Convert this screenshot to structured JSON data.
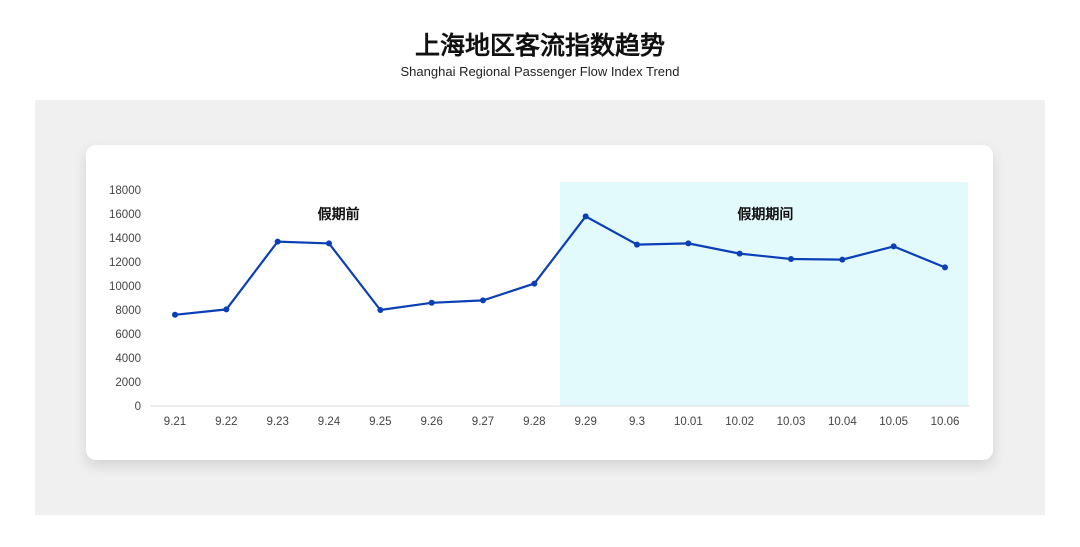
{
  "header": {
    "title": "上海地区客流指数趋势",
    "subtitle": "Shanghai Regional Passenger Flow Index Trend"
  },
  "chart_data": {
    "type": "line",
    "categories": [
      "9.21",
      "9.22",
      "9.23",
      "9.24",
      "9.25",
      "9.26",
      "9.27",
      "9.28",
      "9.29",
      "9.3",
      "10.01",
      "10.02",
      "10.03",
      "10.04",
      "10.05",
      "10.06"
    ],
    "values": [
      7600,
      8050,
      13700,
      13550,
      8000,
      8600,
      8800,
      10200,
      15800,
      13450,
      13550,
      12700,
      12250,
      12200,
      13300,
      11550
    ],
    "ylim": [
      0,
      18000
    ],
    "yticks": [
      0,
      2000,
      4000,
      6000,
      8000,
      10000,
      12000,
      14000,
      16000,
      18000
    ],
    "grid": false,
    "line_color": "#0a3fb5",
    "annotations": [
      {
        "label": "假期前",
        "range": [
          "9.21",
          "9.28"
        ]
      },
      {
        "label": "假期期间",
        "range": [
          "9.29",
          "10.06"
        ],
        "shaded": true,
        "shade_color": "#e3fafd"
      }
    ]
  }
}
